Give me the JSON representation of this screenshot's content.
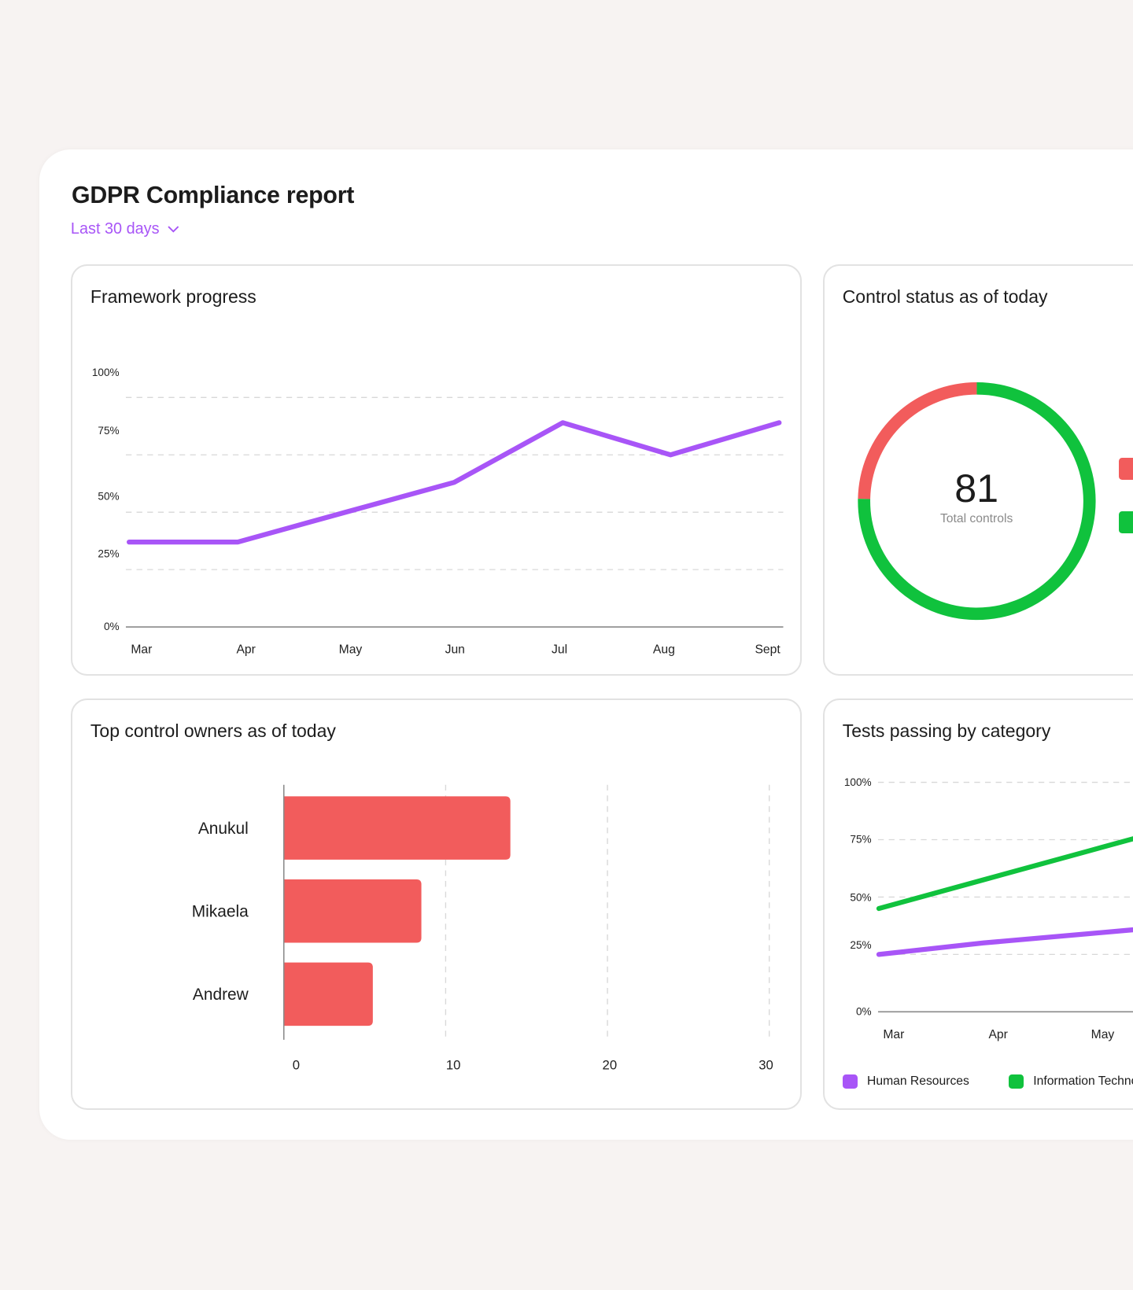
{
  "header": {
    "title": "GDPR Compliance report",
    "range_label": "Last 30 days",
    "range_icon": "chevron-down-icon"
  },
  "colors": {
    "purple": "#a855f7",
    "green": "#10c23d",
    "red": "#f25c5c",
    "background": "#f7f3f2"
  },
  "framework": {
    "title": "Framework progress"
  },
  "control_status": {
    "title": "Control status as of today",
    "total": "81",
    "total_label": "Total controls"
  },
  "owners": {
    "title": "Top control owners as of today"
  },
  "tests": {
    "title": "Tests passing by category"
  },
  "chart_data": [
    {
      "type": "line",
      "title": "Framework progress",
      "categories": [
        "Mar",
        "Apr",
        "May",
        "Jun",
        "Jul",
        "Aug",
        "Sept"
      ],
      "yticks": [
        "0%",
        "25%",
        "50%",
        "75%",
        "100%"
      ],
      "ylim": [
        0,
        100
      ],
      "grid": true,
      "series": [
        {
          "values": [
            37,
            37,
            50,
            63,
            89,
            75,
            89
          ],
          "color": "#a855f7"
        }
      ]
    },
    {
      "type": "pie",
      "title": "Control status as of today",
      "donut": true,
      "total": 81,
      "slices": [
        {
          "value": 20,
          "color": "#f25c5c"
        },
        {
          "value": 61,
          "color": "#10c23d"
        }
      ]
    },
    {
      "type": "bar",
      "orientation": "horizontal",
      "title": "Top control owners as of today",
      "categories": [
        "Anukul",
        "Mikaela",
        "Andrew"
      ],
      "values": [
        14,
        8.5,
        5.5
      ],
      "xlim": [
        0,
        30
      ],
      "xticks": [
        "0",
        "10",
        "20",
        "30"
      ],
      "grid": true,
      "color": "#f25c5c"
    },
    {
      "type": "line",
      "title": "Tests passing by category",
      "categories": [
        "Mar",
        "Apr",
        "May"
      ],
      "yticks": [
        "0%",
        "25%",
        "50%",
        "75%",
        "100%"
      ],
      "ylim": [
        0,
        100
      ],
      "grid": true,
      "legend": "bottom",
      "series": [
        {
          "name": "Human Resources",
          "values": [
            25,
            30,
            34
          ],
          "color": "#a855f7"
        },
        {
          "name": "Information Technology",
          "values": [
            45,
            57.5,
            70
          ],
          "color": "#10c23d"
        }
      ]
    }
  ]
}
